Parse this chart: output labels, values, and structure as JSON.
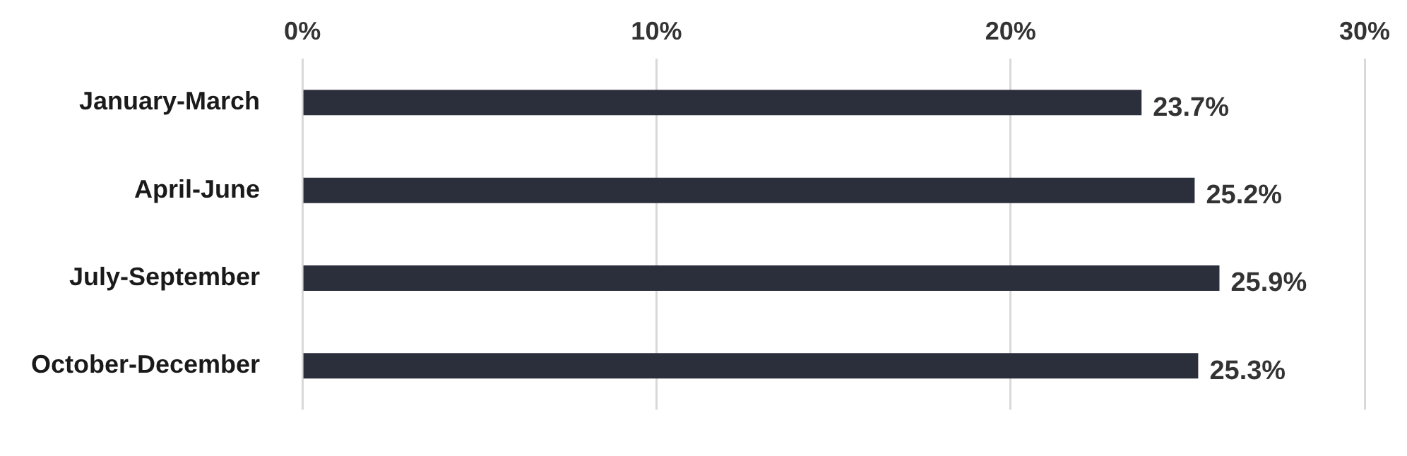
{
  "chart_data": {
    "type": "bar",
    "orientation": "horizontal",
    "categories": [
      "January-March",
      "April-June",
      "July-September",
      "October-December"
    ],
    "values": [
      23.7,
      25.2,
      25.9,
      25.3
    ],
    "value_labels": [
      "23.7%",
      "25.2%",
      "25.9%",
      "25.3%"
    ],
    "color": "#2b2e3b",
    "xlim": [
      0,
      30
    ],
    "xticks": [
      {
        "value": 0,
        "label": "0%"
      },
      {
        "value": 10,
        "label": "10%"
      },
      {
        "value": 20,
        "label": "20%"
      },
      {
        "value": 30,
        "label": "30%"
      }
    ],
    "grid": "x",
    "legend": false
  }
}
